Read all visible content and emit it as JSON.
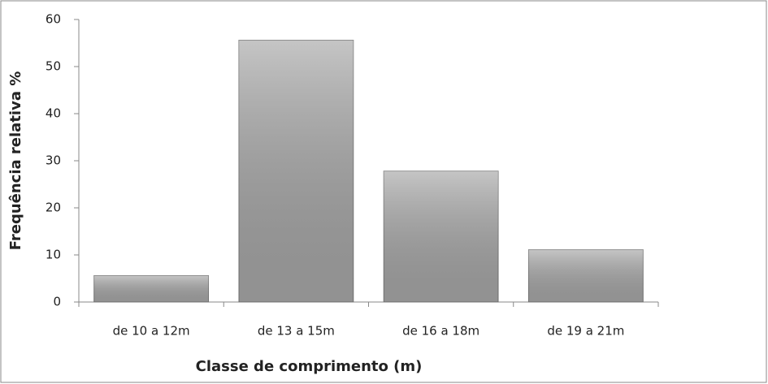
{
  "chart_data": {
    "type": "bar",
    "x_label": "Classe de comprimento (m)",
    "y_label": "Frequência relativa %",
    "categories": [
      "de 10 a 12m",
      "de 13 a 15m",
      "de 16 a 18m",
      "de 19 a 21m"
    ],
    "values": [
      5.6,
      55.6,
      27.8,
      11.1
    ],
    "color": "#a6a6a6",
    "ylim": [
      0,
      60
    ],
    "yticks": [
      0,
      10,
      20,
      30,
      40,
      50,
      60
    ],
    "grid": false
  }
}
